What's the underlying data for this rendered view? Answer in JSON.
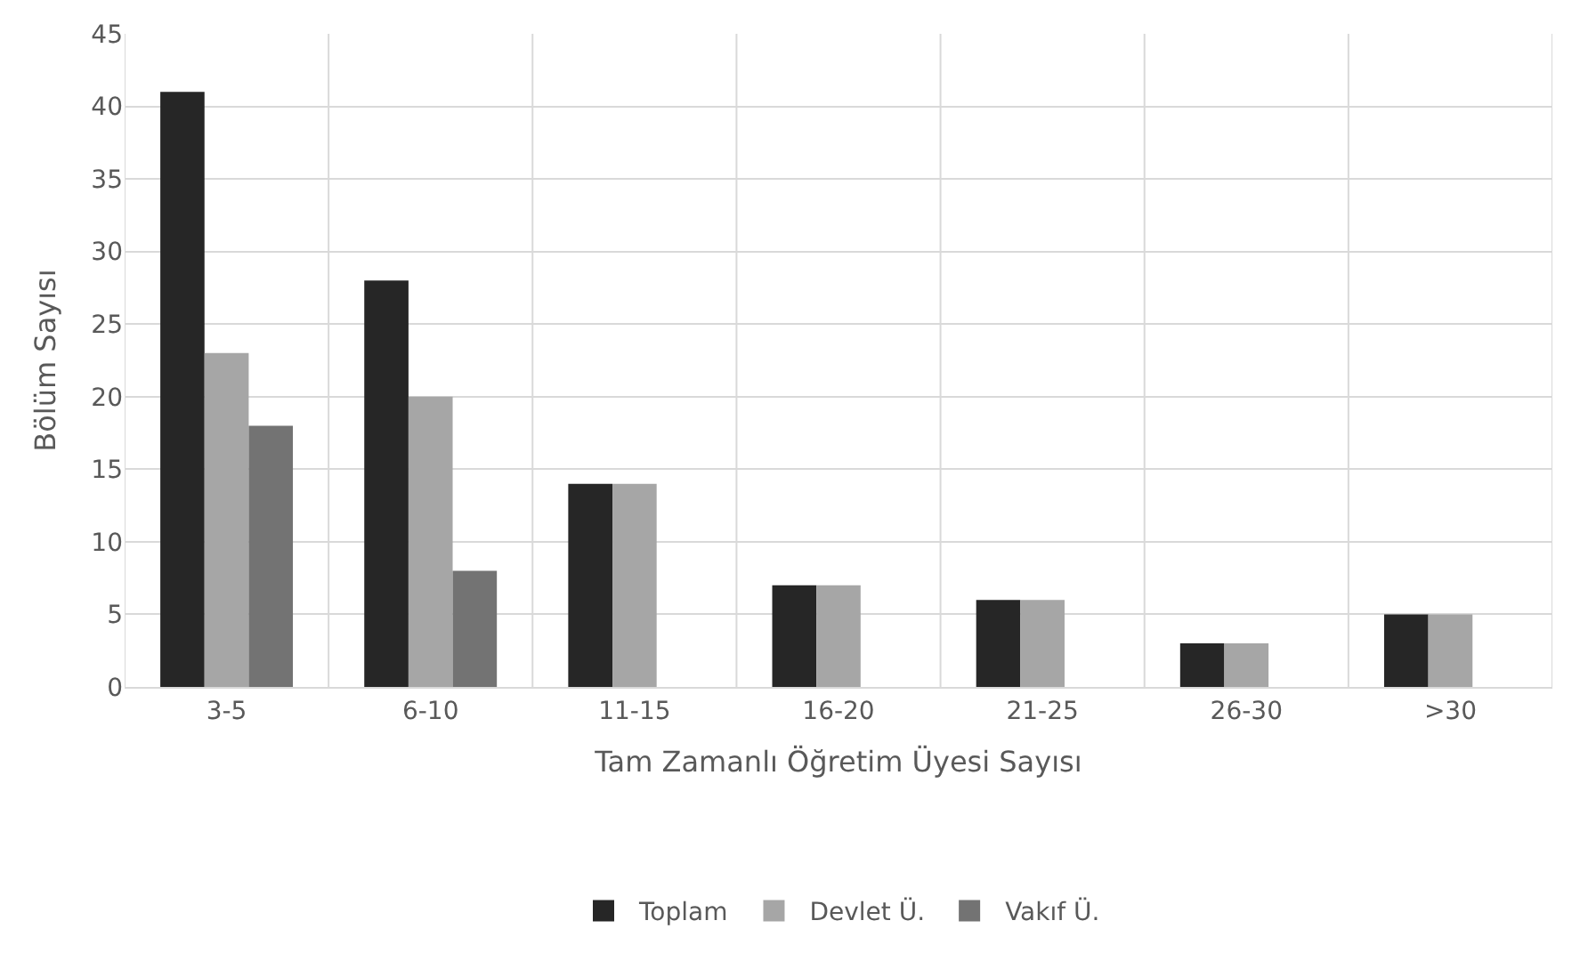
{
  "chart_data": {
    "type": "bar",
    "xlabel": "Tam Zamanlı Öğretim Üyesi Sayısı",
    "ylabel": "Bölüm Sayısı",
    "categories": [
      "3-5",
      "6-10",
      "11-15",
      "16-20",
      "21-25",
      "26-30",
      ">30"
    ],
    "series": [
      {
        "name": "Toplam",
        "color": "#262626",
        "values": [
          41,
          28,
          14,
          7,
          6,
          3,
          5
        ]
      },
      {
        "name": "Devlet Ü.",
        "color": "#a6a6a6",
        "values": [
          23,
          20,
          14,
          7,
          6,
          3,
          5
        ]
      },
      {
        "name": "Vakıf Ü.",
        "color": "#737373",
        "values": [
          18,
          8,
          0,
          0,
          0,
          0,
          0
        ]
      }
    ],
    "ylim": [
      0,
      45
    ],
    "yticks": [
      0,
      5,
      10,
      15,
      20,
      25,
      30,
      35,
      40,
      45
    ],
    "grid": true,
    "legend": "bottom"
  }
}
